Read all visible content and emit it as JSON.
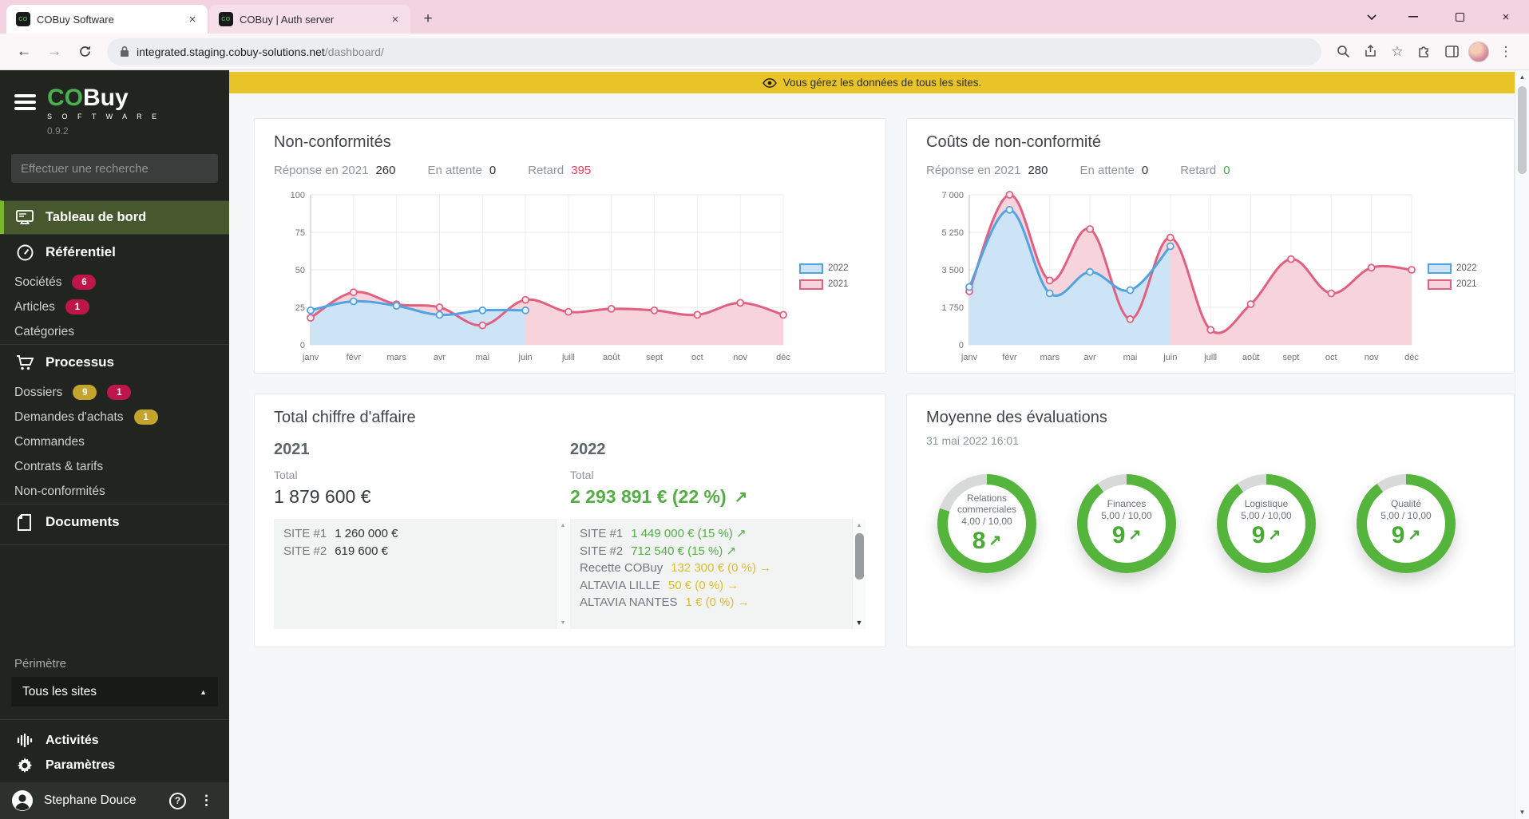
{
  "browser": {
    "tabs": [
      {
        "title": "COBuy Software",
        "favicon_text": "CO"
      },
      {
        "title": "COBuy | Auth server",
        "favicon_text": "CO"
      }
    ],
    "url_host": "integrated.staging.cobuy-solutions.net",
    "url_path": "/dashboard/"
  },
  "banner": {
    "text": "Vous gérez les données de tous les sites."
  },
  "sidebar": {
    "logo_co": "CO",
    "logo_buy": "Buy",
    "logo_sub": "S O F T W A R E",
    "version": "0.9.2",
    "search_placeholder": "Effectuer une recherche",
    "nav": [
      {
        "label": "Tableau de bord",
        "type": "active",
        "icon": "monitor"
      },
      {
        "label": "Référentiel",
        "type": "header",
        "icon": "compass"
      },
      {
        "label": "Sociétés",
        "type": "item",
        "badges": [
          {
            "text": "6",
            "color": "crimson"
          }
        ]
      },
      {
        "label": "Articles",
        "type": "item",
        "badges": [
          {
            "text": "1",
            "color": "crimson"
          }
        ]
      },
      {
        "label": "Catégories",
        "type": "item",
        "badges": []
      },
      {
        "label": "Processus",
        "type": "header",
        "icon": "cart"
      },
      {
        "label": "Dossiers",
        "type": "item",
        "badges": [
          {
            "text": "9",
            "color": "gold"
          },
          {
            "text": "1",
            "color": "crimson"
          }
        ]
      },
      {
        "label": "Demandes d'achats",
        "type": "item",
        "badges": [
          {
            "text": "1",
            "color": "gold"
          }
        ]
      },
      {
        "label": "Commandes",
        "type": "item",
        "badges": []
      },
      {
        "label": "Contrats & tarifs",
        "type": "item",
        "badges": []
      },
      {
        "label": "Non-conformités",
        "type": "item",
        "badges": []
      },
      {
        "label": "Documents",
        "type": "header",
        "icon": "document"
      }
    ],
    "perimetre_label": "Périmètre",
    "perimetre_value": "Tous les sites",
    "footer_items": [
      {
        "label": "Activités",
        "icon": "equalizer"
      },
      {
        "label": "Paramètres",
        "icon": "gear"
      }
    ],
    "user": {
      "name": "Stephane Douce"
    }
  },
  "cards": {
    "nonconf": {
      "title": "Non-conformités",
      "stats": [
        {
          "label": "Réponse en 2021",
          "value": "260",
          "color": "dark"
        },
        {
          "label": "En attente",
          "value": "0",
          "color": "dark"
        },
        {
          "label": "Retard",
          "value": "395",
          "color": "red"
        }
      ]
    },
    "costs": {
      "title": "Coûts de non-conformité",
      "stats": [
        {
          "label": "Réponse en 2021",
          "value": "280",
          "color": "dark"
        },
        {
          "label": "En attente",
          "value": "0",
          "color": "dark"
        },
        {
          "label": "Retard",
          "value": "0",
          "color": "green"
        }
      ]
    },
    "revenue": {
      "title": "Total chiffre d'affaire",
      "columns": [
        {
          "year": "2021",
          "total_label": "Total",
          "total": "1 879 600 €",
          "total_color": "dark",
          "total_arrow": "",
          "has_thumb": false,
          "rows": [
            {
              "label": "SITE #1",
              "value": "1 260 000 €",
              "color": "dark",
              "arrow": ""
            },
            {
              "label": "SITE #2",
              "value": "619 600 €",
              "color": "dark",
              "arrow": ""
            }
          ]
        },
        {
          "year": "2022",
          "total_label": "Total",
          "total": "2 293 891 € (22 %)",
          "total_color": "green",
          "total_arrow": "↗",
          "has_thumb": true,
          "rows": [
            {
              "label": "SITE #1",
              "value": "1 449 000 € (15 %)",
              "color": "green",
              "arrow": "↗"
            },
            {
              "label": "SITE #2",
              "value": "712 540 € (15 %)",
              "color": "green",
              "arrow": "↗"
            },
            {
              "label": "Recette COBuy",
              "value": "132 300 € (0 %)",
              "color": "gold",
              "arrow": "→"
            },
            {
              "label": "ALTAVIA LILLE",
              "value": "50 € (0 %)",
              "color": "gold",
              "arrow": "→"
            },
            {
              "label": "ALTAVIA NANTES",
              "value": "1 € (0 %)",
              "color": "gold",
              "arrow": "→"
            }
          ]
        }
      ]
    },
    "ratings": {
      "title": "Moyenne des évaluations",
      "subtitle": "31 mai 2022 16:01",
      "gauges": [
        {
          "label": "Relations commerciales",
          "score": "4,00 / 10,00",
          "value": "8",
          "arrow": "↗",
          "pct": 80
        },
        {
          "label": "Finances",
          "score": "5,00 / 10,00",
          "value": "9",
          "arrow": "↗",
          "pct": 90
        },
        {
          "label": "Logistique",
          "score": "5,00 / 10,00",
          "value": "9",
          "arrow": "↗",
          "pct": 90
        },
        {
          "label": "Qualité",
          "score": "5,00 / 10,00",
          "value": "9",
          "arrow": "↗",
          "pct": 90
        }
      ]
    }
  },
  "chart_data": [
    {
      "type": "line",
      "title": "Non-conformités",
      "x": [
        "janv",
        "févr",
        "mars",
        "avr",
        "mai",
        "juin",
        "juill",
        "août",
        "sept",
        "oct",
        "nov",
        "déc"
      ],
      "ylim": [
        0,
        100
      ],
      "yticks": [
        {
          "v": 0,
          "label": "0"
        },
        {
          "v": 25,
          "label": "25"
        },
        {
          "v": 50,
          "label": "50"
        },
        {
          "v": 75,
          "label": "75"
        },
        {
          "v": 100,
          "label": "100"
        }
      ],
      "grid": true,
      "legend_position": "right",
      "series": [
        {
          "name": "2022",
          "color": "#51a3e2",
          "fill": "#cde4f6",
          "values": [
            23,
            29,
            26,
            20,
            23,
            23
          ]
        },
        {
          "name": "2021",
          "color": "#e2607f",
          "fill": "#f7d3dc",
          "values": [
            18,
            35,
            27,
            25,
            13,
            30,
            22,
            24,
            23,
            20,
            28,
            20
          ]
        }
      ]
    },
    {
      "type": "line",
      "title": "Coûts de non-conformité",
      "x": [
        "janv",
        "févr",
        "mars",
        "avr",
        "mai",
        "juin",
        "juill",
        "août",
        "sept",
        "oct",
        "nov",
        "déc"
      ],
      "ylim": [
        0,
        7000
      ],
      "yticks": [
        {
          "v": 0,
          "label": "0"
        },
        {
          "v": 1750,
          "label": "1 750"
        },
        {
          "v": 3500,
          "label": "3 500"
        },
        {
          "v": 5250,
          "label": "5 250"
        },
        {
          "v": 7000,
          "label": "7 000"
        }
      ],
      "grid": true,
      "legend_position": "right",
      "series": [
        {
          "name": "2022",
          "color": "#51a3e2",
          "fill": "#cde4f6",
          "values": [
            2700,
            6300,
            2400,
            3400,
            2550,
            4600
          ]
        },
        {
          "name": "2021",
          "color": "#e2607f",
          "fill": "#f7d3dc",
          "values": [
            2500,
            7000,
            3000,
            5400,
            1200,
            5000,
            700,
            1900,
            4000,
            2400,
            3600,
            3500
          ]
        }
      ]
    }
  ],
  "colors": {
    "accent_green": "#4caf50",
    "nav_active_bg": "#47582e",
    "nav_active_bar": "#76b82a",
    "badge_crimson": "#bd1649",
    "badge_gold": "#c3a42c",
    "stat_red": "#f23b5c",
    "stat_green": "#47a83c",
    "money_green": "#52b043",
    "money_gold": "#ddbe2a",
    "series_blue": "#51a3e2",
    "series_pink": "#e2607f",
    "banner_yellow": "#e9c428",
    "gauge_green": "#55b43b",
    "gauge_gray": "#d8dada"
  }
}
